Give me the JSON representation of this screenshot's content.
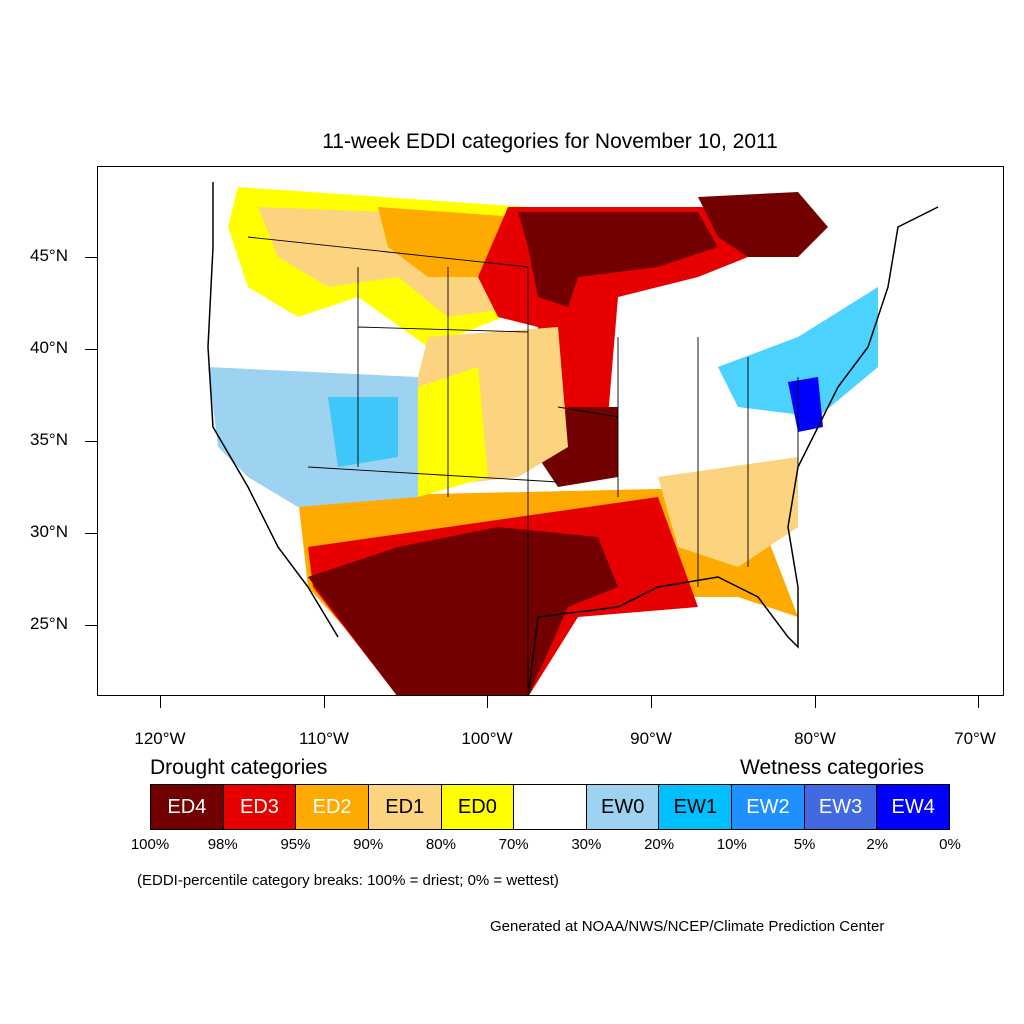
{
  "title": "11-week EDDI categories for November 10, 2011",
  "axes": {
    "y_labels": [
      "45°N",
      "40°N",
      "35°N",
      "30°N",
      "25°N"
    ],
    "x_labels": [
      "120°W",
      "110°W",
      "100°W",
      "90°W",
      "80°W",
      "70°W"
    ]
  },
  "legend": {
    "drought_heading": "Drought categories",
    "wetness_heading": "Wetness categories",
    "categories": [
      {
        "label": "ED4",
        "color": "#730000",
        "text_color": "#ffffff"
      },
      {
        "label": "ED3",
        "color": "#e60000",
        "text_color": "#ffffff"
      },
      {
        "label": "ED2",
        "color": "#ffaa00",
        "text_color": "#ffffff"
      },
      {
        "label": "ED1",
        "color": "#fcd37f",
        "text_color": "#000000"
      },
      {
        "label": "ED0",
        "color": "#ffff00",
        "text_color": "#000000"
      },
      {
        "label": "",
        "color": "#ffffff",
        "text_color": "#000000"
      },
      {
        "label": "EW0",
        "color": "#9dd3f0",
        "text_color": "#000000"
      },
      {
        "label": "EW1",
        "color": "#00bfff",
        "text_color": "#000000"
      },
      {
        "label": "EW2",
        "color": "#1e90ff",
        "text_color": "#ffffff"
      },
      {
        "label": "EW3",
        "color": "#4169e1",
        "text_color": "#ffffff"
      },
      {
        "label": "EW4",
        "color": "#0000ff",
        "text_color": "#ffffff"
      }
    ],
    "breaks": [
      "100%",
      "98%",
      "95%",
      "90%",
      "80%",
      "70%",
      "30%",
      "20%",
      "10%",
      "5%",
      "2%",
      "0%"
    ]
  },
  "note": "(EDDI-percentile category breaks: 100% = driest; 0% = wettest)",
  "credit": "Generated at NOAA/NWS/NCEP/Climate Prediction Center"
}
